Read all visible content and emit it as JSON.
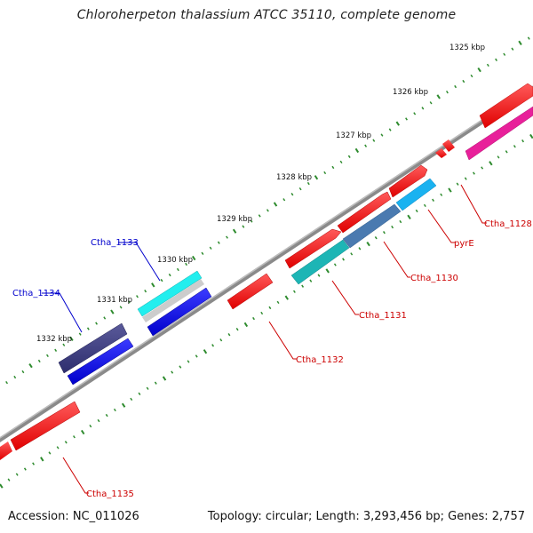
{
  "title": "Chloroherpeton thalassium ATCC 35110, complete genome",
  "footer": {
    "accession": "Accession: NC_011026",
    "topology": "Topology: circular; Length: 3,293,456 bp; Genes: 2,757"
  },
  "colors": {
    "backbone": "#888888",
    "tick": "#2e8b2e",
    "gene_label": "#cc0000",
    "gene_label_alt": "#0000cc"
  },
  "kbp_ticks": [
    "1325 kbp",
    "1326 kbp",
    "1327 kbp",
    "1328 kbp",
    "1329 kbp",
    "1330 kbp",
    "1331 kbp",
    "1332 kbp"
  ],
  "gene_labels": [
    {
      "name": "Ctha_1128",
      "color": "red"
    },
    {
      "name": "pyrE",
      "color": "red"
    },
    {
      "name": "Ctha_1130",
      "color": "red"
    },
    {
      "name": "Ctha_1131",
      "color": "red"
    },
    {
      "name": "Ctha_1132",
      "color": "red"
    },
    {
      "name": "Ctha_1133",
      "color": "blue"
    },
    {
      "name": "Ctha_1134",
      "color": "blue"
    },
    {
      "name": "Ctha_1135",
      "color": "red"
    }
  ]
}
